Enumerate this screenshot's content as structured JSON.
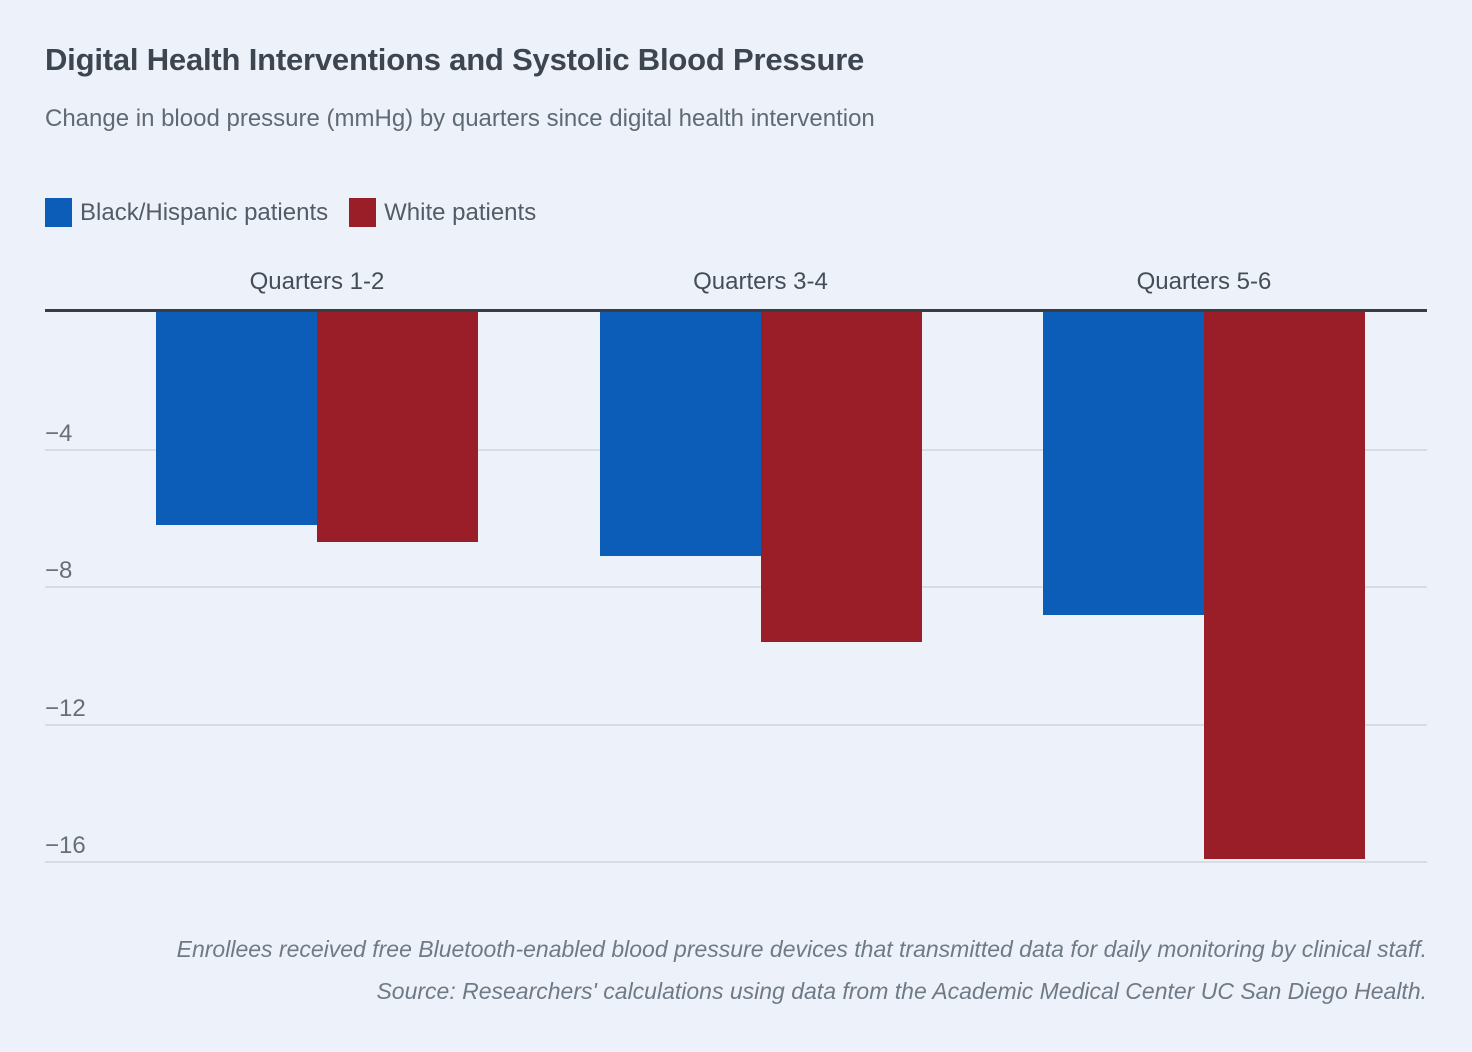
{
  "page": {
    "background_color": "#edf2fa"
  },
  "header": {
    "title": "Digital Health Interventions and Systolic Blood Pressure",
    "subtitle": "Change in blood pressure (mmHg) by quarters since digital health intervention"
  },
  "legend": {
    "items": [
      {
        "label": "Black/Hispanic patients",
        "color": "#0b5db8"
      },
      {
        "label": "White patients",
        "color": "#9a1e27"
      }
    ]
  },
  "chart_data": {
    "type": "bar",
    "title": "Digital Health Interventions and Systolic Blood Pressure",
    "subtitle": "Change in blood pressure (mmHg) by quarters since digital health intervention",
    "categories": [
      "Quarters 1-2",
      "Quarters 3-4",
      "Quarters 5-6"
    ],
    "series": [
      {
        "name": "Black/Hispanic patients",
        "color": "#0b5db8",
        "values": [
          -6.2,
          -7.1,
          -8.8
        ]
      },
      {
        "name": "White patients",
        "color": "#9a1e27",
        "values": [
          -6.7,
          -9.6,
          -15.9
        ]
      }
    ],
    "xlabel": "",
    "ylabel": "Change in blood pressure (mmHg)",
    "ylim": [
      -17.4,
      0
    ],
    "yticks": [
      -4,
      -8,
      -12,
      -16
    ],
    "ytick_labels": [
      "−4",
      "−8",
      "−12",
      "−16"
    ],
    "grid": true,
    "category_labels_position": "above-plot",
    "legend_position": "top-left",
    "baseline_color": "#363d45",
    "gridline_color": "#d8dde4"
  },
  "footer": {
    "note": "Enrollees received free Bluetooth-enabled blood pressure devices that transmitted data for daily monitoring by clinical staff.",
    "source": "Source: Researchers' calculations using data from the Academic Medical Center UC San Diego Health."
  }
}
